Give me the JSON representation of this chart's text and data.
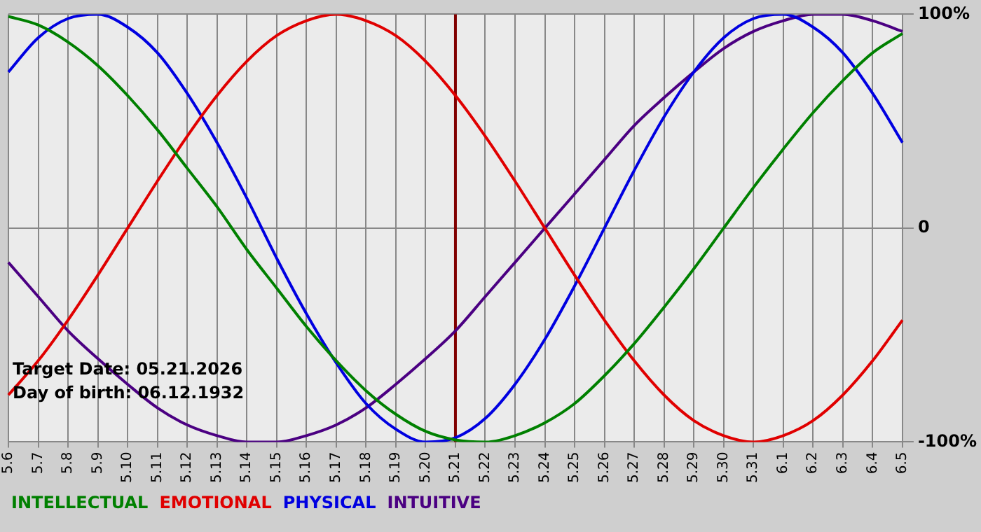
{
  "chart_data": {
    "type": "line",
    "categories": [
      "5.6",
      "5.7",
      "5.8",
      "5.9",
      "5.10",
      "5.11",
      "5.12",
      "5.13",
      "5.14",
      "5.15",
      "5.16",
      "5.17",
      "5.18",
      "5.19",
      "5.20",
      "5.21",
      "5.22",
      "5.23",
      "5.24",
      "5.25",
      "5.26",
      "5.27",
      "5.28",
      "5.29",
      "5.30",
      "5.31",
      "6.1",
      "6.2",
      "6.3",
      "6.4",
      "6.5"
    ],
    "series": [
      {
        "name": "INTELLECTUAL",
        "color": "#008000",
        "values": [
          99,
          95,
          87,
          76,
          62,
          46,
          28,
          10,
          -10,
          -28,
          -46,
          -62,
          -76,
          -87,
          -95,
          -99,
          -100,
          -97,
          -91,
          -82,
          -69,
          -54,
          -37,
          -19,
          0,
          19,
          37,
          54,
          69,
          82,
          91
        ]
      },
      {
        "name": "EMOTIONAL",
        "color": "#e00000",
        "values": [
          -78,
          -62,
          -43,
          -22,
          0,
          22,
          43,
          62,
          78,
          90,
          97,
          100,
          97,
          90,
          78,
          62,
          43,
          22,
          0,
          -22,
          -43,
          -62,
          -78,
          -90,
          -97,
          -100,
          -97,
          -90,
          -78,
          -62,
          -43
        ]
      },
      {
        "name": "PHYSICAL",
        "color": "#0000e0",
        "values": [
          73,
          89,
          98,
          100,
          94,
          82,
          63,
          40,
          14,
          -14,
          -40,
          -63,
          -82,
          -94,
          -100,
          -98,
          -89,
          -73,
          -52,
          -27,
          0,
          27,
          52,
          73,
          89,
          98,
          100,
          94,
          82,
          63,
          40
        ]
      },
      {
        "name": "INTUITIVE",
        "color": "#4b0082",
        "values": [
          -16,
          -32,
          -48,
          -61,
          -73,
          -84,
          -92,
          -97,
          -100,
          -100,
          -97,
          -92,
          -84,
          -73,
          -61,
          -48,
          -32,
          -16,
          0,
          16,
          32,
          48,
          61,
          73,
          84,
          92,
          97,
          100,
          100,
          97,
          92
        ]
      }
    ],
    "ylim": [
      -100,
      100
    ],
    "yticks": [
      {
        "value": -100,
        "label": "-100%"
      },
      0,
      {
        "value": 100,
        "label": "100%"
      }
    ],
    "grid": true,
    "legend": "bottom",
    "marker": "none",
    "line_style": "solid",
    "ref_lines": [
      {
        "axis": "x",
        "value": "5.21",
        "color": "#800000"
      }
    ],
    "annotations": [
      "Target Date: 05.21.2026",
      "Day of birth: 06.12.1932"
    ]
  }
}
